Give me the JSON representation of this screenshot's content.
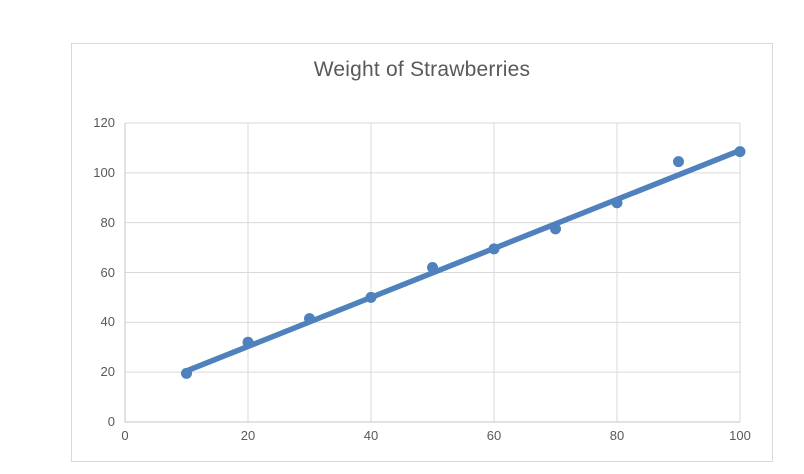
{
  "chart_data": {
    "type": "scatter",
    "title": "Weight of Strawberries",
    "x": [
      10,
      20,
      30,
      40,
      50,
      60,
      70,
      80,
      90,
      100
    ],
    "y": [
      19.5,
      32,
      41.5,
      50,
      62,
      69.5,
      77.5,
      88,
      104.5,
      108.5
    ],
    "trendline": {
      "x1": 10,
      "y1": 20.5,
      "x2": 100,
      "y2": 109
    },
    "xlim": [
      0,
      100
    ],
    "ylim": [
      0,
      120
    ],
    "x_ticks": [
      0,
      20,
      40,
      60,
      80,
      100
    ],
    "y_ticks": [
      0,
      20,
      40,
      60,
      80,
      100,
      120
    ],
    "grid": true,
    "legend": "none",
    "xlabel": "",
    "ylabel": "",
    "colors": {
      "series": "#4F81BD",
      "gridline": "#D9D9D9",
      "axis_line": "#C6C6C6",
      "tick_text": "#595959",
      "title_text": "#595959",
      "chart_border": "#D9D9D9",
      "background": "#FFFFFF"
    },
    "marker_radius": 5.5,
    "trendline_width": 5.5
  }
}
